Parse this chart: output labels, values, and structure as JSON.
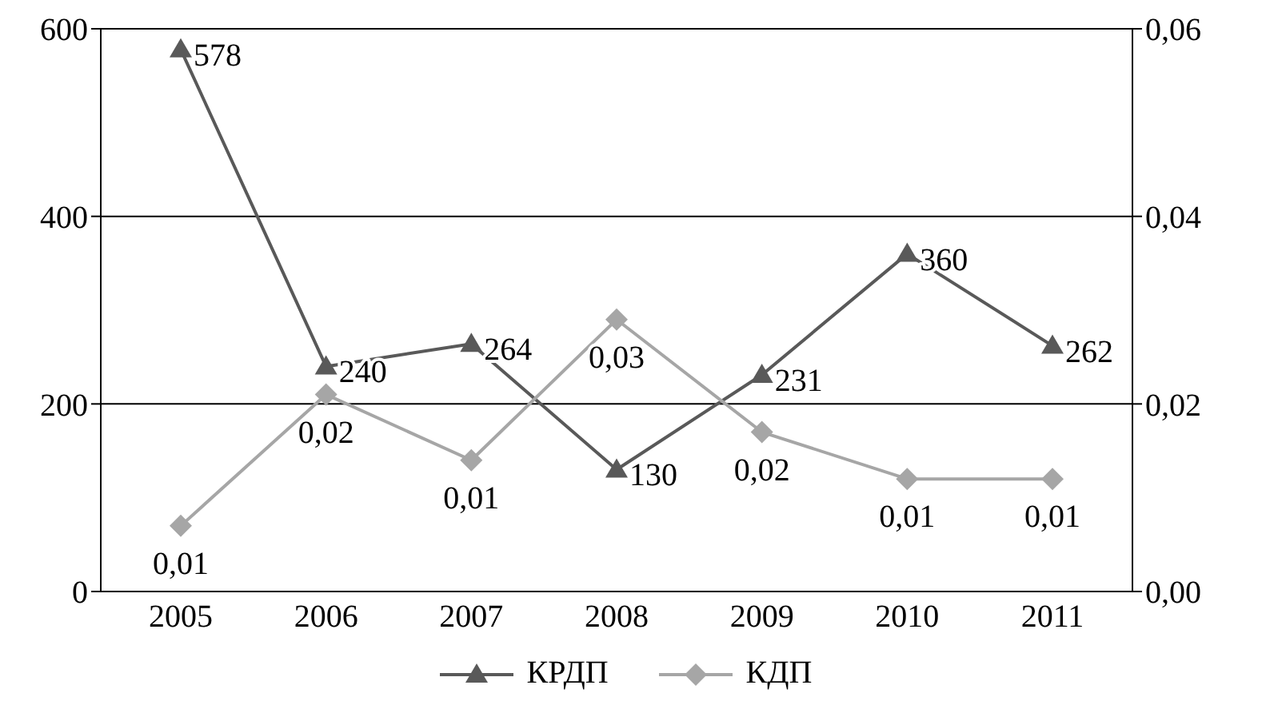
{
  "chart_data": {
    "type": "line",
    "categories": [
      "2005",
      "2006",
      "2007",
      "2008",
      "2009",
      "2010",
      "2011"
    ],
    "series": [
      {
        "name": "КРДП",
        "color": "#595959",
        "marker": "triangle",
        "values": [
          578,
          240,
          264,
          130,
          231,
          360,
          262
        ],
        "value_labels": [
          "578",
          "240",
          "264",
          "130",
          "231",
          "360",
          "262"
        ]
      },
      {
        "name": "КДП",
        "color": "#a6a6a6",
        "marker": "diamond",
        "axis": "y2",
        "values": [
          0.007,
          0.021,
          0.014,
          0.029,
          0.017,
          0.012,
          0.012
        ],
        "value_labels": [
          "0,01",
          "0,02",
          "0,01",
          "0,03",
          "0,02",
          "0,01",
          "0,01"
        ]
      }
    ],
    "ylim": [
      0,
      600
    ],
    "yticks": [
      0,
      200,
      400,
      600
    ],
    "y2lim": [
      0,
      0.06
    ],
    "y2ticks": [
      {
        "value": 0,
        "label": "0,00"
      },
      {
        "value": 0.02,
        "label": "0,02"
      },
      {
        "value": 0.04,
        "label": "0,04"
      },
      {
        "value": 0.06,
        "label": "0,06"
      }
    ],
    "grid": "y",
    "legend": "bottom",
    "line_style": "solid"
  }
}
